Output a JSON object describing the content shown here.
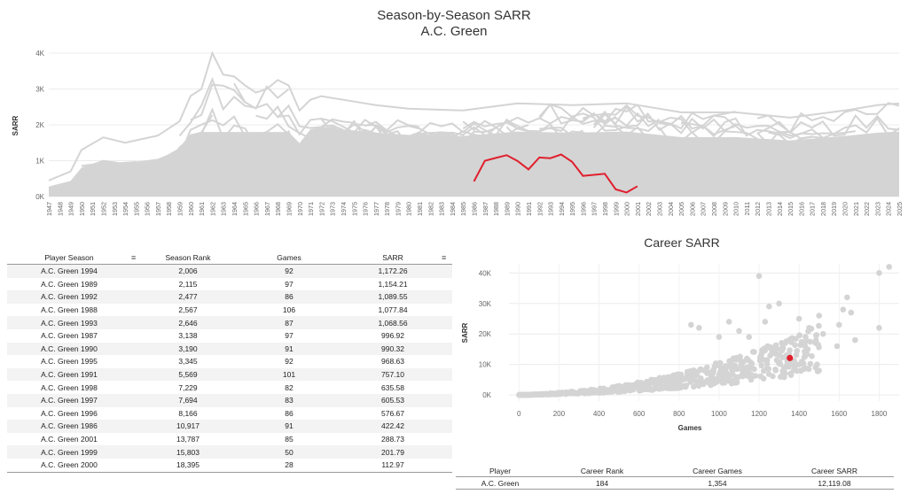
{
  "line_title": "Season-by-Season SARR",
  "line_subtitle": "A.C. Green",
  "scatter_title": "Career SARR",
  "season_table": {
    "headers": [
      "Player Season",
      "Season Rank",
      "Games",
      "SARR"
    ],
    "rows": [
      [
        "A.C. Green 1994",
        "2,006",
        "92",
        "1,172.26"
      ],
      [
        "A.C. Green 1989",
        "2,115",
        "97",
        "1,154.21"
      ],
      [
        "A.C. Green 1992",
        "2,477",
        "86",
        "1,089.55"
      ],
      [
        "A.C. Green 1988",
        "2,567",
        "106",
        "1,077.84"
      ],
      [
        "A.C. Green 1993",
        "2,646",
        "87",
        "1,068.56"
      ],
      [
        "A.C. Green 1987",
        "3,138",
        "97",
        "996.92"
      ],
      [
        "A.C. Green 1990",
        "3,190",
        "91",
        "990.32"
      ],
      [
        "A.C. Green 1995",
        "3,345",
        "92",
        "968.63"
      ],
      [
        "A.C. Green 1991",
        "5,569",
        "101",
        "757.10"
      ],
      [
        "A.C. Green 1998",
        "7,229",
        "82",
        "635.58"
      ],
      [
        "A.C. Green 1997",
        "7,694",
        "83",
        "605.53"
      ],
      [
        "A.C. Green 1996",
        "8,166",
        "86",
        "576.67"
      ],
      [
        "A.C. Green 1986",
        "10,917",
        "91",
        "422.42"
      ],
      [
        "A.C. Green 2001",
        "13,787",
        "85",
        "288.73"
      ],
      [
        "A.C. Green 1999",
        "15,803",
        "50",
        "201.79"
      ],
      [
        "A.C. Green 2000",
        "18,395",
        "28",
        "112.97"
      ]
    ]
  },
  "career_table": {
    "headers": [
      "Player",
      "Career Rank",
      "Career Games",
      "Career SARR"
    ],
    "row": [
      "A.C. Green",
      "184",
      "1,354",
      "12,119.08"
    ]
  },
  "chart_data": [
    {
      "type": "line",
      "title": "Season-by-Season SARR",
      "subtitle": "A.C. Green",
      "xlabel": "",
      "ylabel": "SARR",
      "xlim": [
        1947,
        2025
      ],
      "ylim": [
        0,
        4000
      ],
      "yticks": [
        0,
        1000,
        2000,
        3000,
        4000
      ],
      "ytick_labels": [
        "0K",
        "1K",
        "2K",
        "3K",
        "4K"
      ],
      "grid": true,
      "highlight_color": "#e0202e",
      "background_color": "#d4d4d4",
      "series": [
        {
          "name": "A.C. Green",
          "x": [
            1986,
            1987,
            1988,
            1989,
            1990,
            1991,
            1992,
            1993,
            1994,
            1995,
            1996,
            1997,
            1998,
            1999,
            2000,
            2001
          ],
          "values": [
            422.42,
            996.92,
            1077.84,
            1154.21,
            990.32,
            757.1,
            1089.55,
            1068.56,
            1172.26,
            968.63,
            576.67,
            605.53,
            635.58,
            201.79,
            112.97,
            288.73
          ]
        }
      ],
      "background_series_upper_envelope": {
        "x": [
          1947,
          1949,
          1950,
          1952,
          1954,
          1957,
          1959,
          1960,
          1961,
          1962,
          1963,
          1964,
          1965,
          1966,
          1967,
          1968,
          1969,
          1970,
          1971,
          1972,
          1975,
          1977,
          1980,
          1985,
          1990,
          1995,
          2000,
          2005,
          2010,
          2015,
          2020,
          2023,
          2025
        ],
        "values": [
          450,
          700,
          1300,
          1650,
          1500,
          1700,
          2100,
          2800,
          3000,
          4000,
          3400,
          3350,
          3100,
          2900,
          3000,
          3250,
          3100,
          2400,
          2700,
          2800,
          2650,
          2550,
          2450,
          2400,
          2600,
          2550,
          2600,
          2350,
          2350,
          2200,
          2400,
          2550,
          2600
        ]
      }
    },
    {
      "type": "scatter",
      "title": "Career SARR",
      "xlabel": "Games",
      "ylabel": "SARR",
      "xlim": [
        -50,
        1900
      ],
      "ylim": [
        -2000,
        43000
      ],
      "xticks": [
        0,
        200,
        400,
        600,
        800,
        1000,
        1200,
        1400,
        1600,
        1800
      ],
      "yticks": [
        0,
        10000,
        20000,
        30000,
        40000
      ],
      "ytick_labels": [
        "0K",
        "10K",
        "20K",
        "30K",
        "40K"
      ],
      "grid": true,
      "point_color": "#d4d4d4",
      "highlight_color": "#e0202e",
      "highlight": {
        "name": "A.C. Green",
        "x": 1354,
        "y": 12119.08
      },
      "notable_points": [
        {
          "x": 1850,
          "y": 42000
        },
        {
          "x": 1800,
          "y": 40000
        },
        {
          "x": 1200,
          "y": 39000
        },
        {
          "x": 1640,
          "y": 32000
        },
        {
          "x": 1620,
          "y": 28000
        },
        {
          "x": 1660,
          "y": 27000
        },
        {
          "x": 1800,
          "y": 22000
        },
        {
          "x": 1680,
          "y": 18000
        },
        {
          "x": 1250,
          "y": 29000
        },
        {
          "x": 1400,
          "y": 25000
        },
        {
          "x": 1500,
          "y": 26000
        },
        {
          "x": 1450,
          "y": 22000
        },
        {
          "x": 1520,
          "y": 20000
        },
        {
          "x": 1600,
          "y": 23000
        },
        {
          "x": 1300,
          "y": 30000
        },
        {
          "x": 1050,
          "y": 24000
        },
        {
          "x": 900,
          "y": 22000
        },
        {
          "x": 860,
          "y": 23000
        },
        {
          "x": 1150,
          "y": 19000
        },
        {
          "x": 1490,
          "y": 10000
        },
        {
          "x": 1380,
          "y": 9500
        },
        {
          "x": 1590,
          "y": 16000
        },
        {
          "x": 1330,
          "y": 17000
        },
        {
          "x": 1100,
          "y": 21000
        },
        {
          "x": 1000,
          "y": 19000
        },
        {
          "x": 1230,
          "y": 24000
        }
      ]
    }
  ]
}
